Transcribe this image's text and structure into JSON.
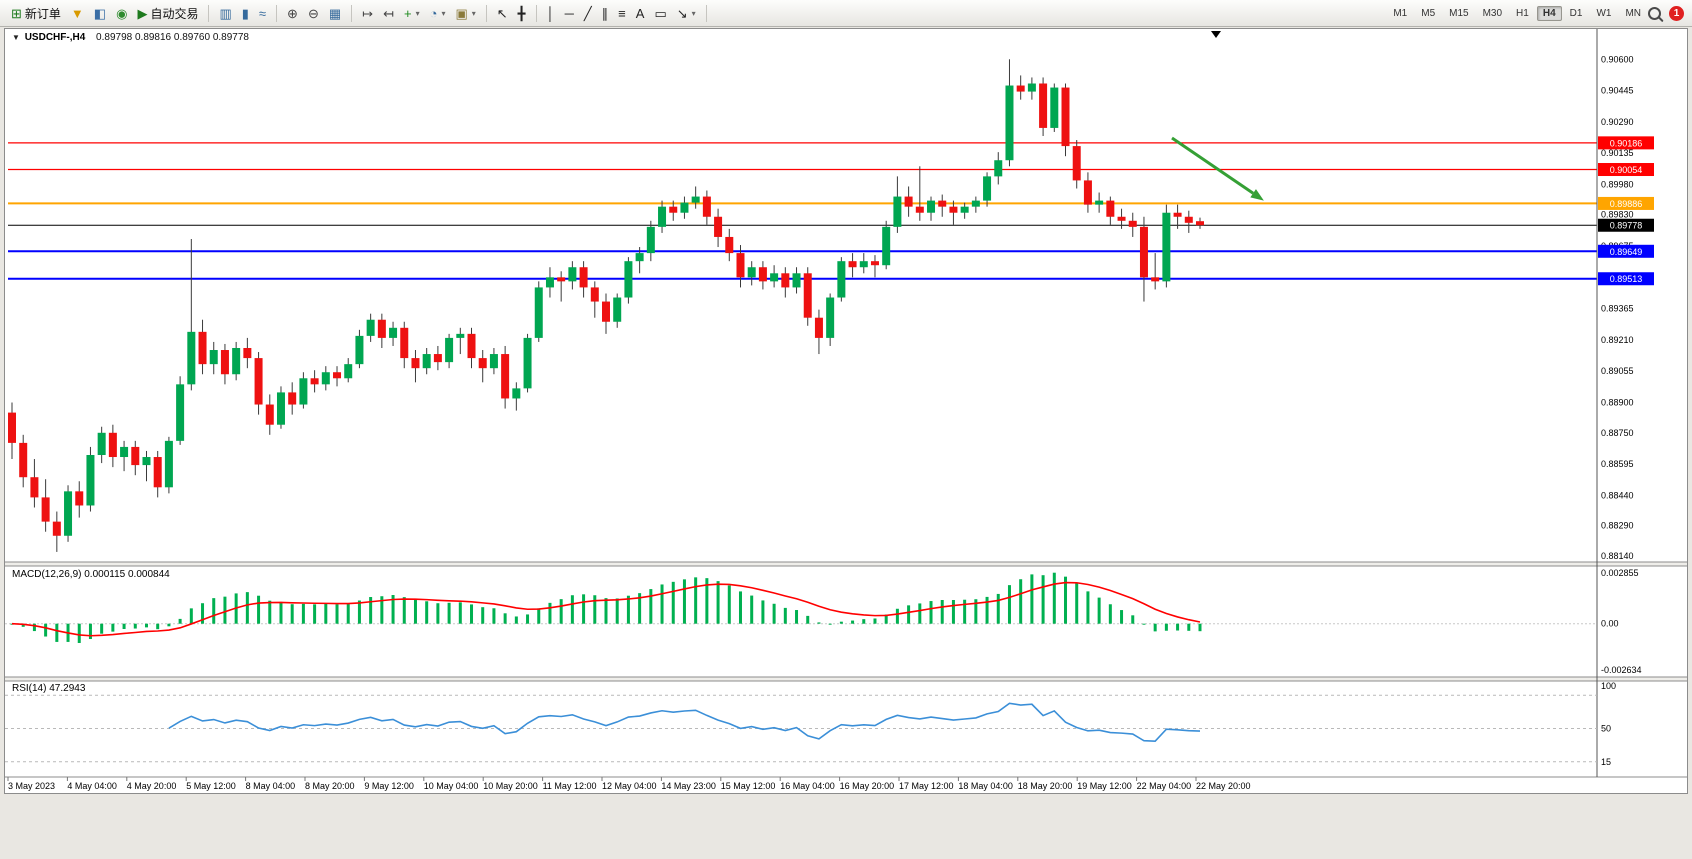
{
  "toolbar": {
    "groups": [
      {
        "items": [
          {
            "name": "new-order-button",
            "label": "新订单",
            "glyph": "⊞",
            "color": "#1d7a1d"
          },
          {
            "name": "market-watch-icon",
            "glyph": "▼",
            "color": "#d89a00"
          },
          {
            "name": "data-window-icon",
            "glyph": "◧",
            "color": "#3a6ea5"
          },
          {
            "name": "navigator-icon",
            "glyph": "◉",
            "color": "#2e8b2e"
          },
          {
            "name": "auto-trading-button",
            "label": "自动交易",
            "glyph": "▶",
            "color": "#1d7a1d"
          }
        ]
      },
      {
        "items": [
          {
            "name": "bar-chart-icon",
            "glyph": "▥",
            "color": "#356a9c"
          },
          {
            "name": "candlestick-chart-icon",
            "glyph": "▮",
            "color": "#356a9c"
          },
          {
            "name": "line-chart-icon",
            "glyph": "≈",
            "color": "#356a9c"
          }
        ]
      },
      {
        "items": [
          {
            "name": "zoom-in-icon",
            "glyph": "⊕",
            "color": "#444"
          },
          {
            "name": "zoom-out-icon",
            "glyph": "⊖",
            "color": "#444"
          },
          {
            "name": "tile-windows-icon",
            "glyph": "▦",
            "color": "#356a9c"
          }
        ]
      },
      {
        "items": [
          {
            "name": "auto-scroll-icon",
            "glyph": "↦",
            "color": "#444"
          },
          {
            "name": "chart-shift-icon",
            "glyph": "↤",
            "color": "#444"
          },
          {
            "name": "indicators-icon",
            "glyph": "+",
            "color": "#1d8a1d",
            "caret": true
          },
          {
            "name": "periods-icon",
            "glyph": "◔",
            "color": "#356a9c",
            "caret": true
          },
          {
            "name": "templates-icon",
            "glyph": "▣",
            "color": "#8a7a3a",
            "caret": true
          }
        ]
      },
      {
        "items": [
          {
            "name": "cursor-icon",
            "glyph": "↖",
            "color": "#222"
          },
          {
            "name": "crosshair-icon",
            "glyph": "╋",
            "color": "#222"
          }
        ]
      },
      {
        "items": [
          {
            "name": "vertical-line-icon",
            "glyph": "│",
            "color": "#222"
          },
          {
            "name": "horizontal-line-icon",
            "glyph": "─",
            "color": "#222"
          },
          {
            "name": "trendline-icon",
            "glyph": "╱",
            "color": "#222"
          },
          {
            "name": "channel-icon",
            "glyph": "∥",
            "color": "#222"
          },
          {
            "name": "fibonacci-icon",
            "glyph": "≡",
            "color": "#222"
          },
          {
            "name": "text-icon",
            "glyph": "A",
            "color": "#222"
          },
          {
            "name": "label-icon",
            "glyph": "▭",
            "color": "#222"
          },
          {
            "name": "arrows-icon",
            "glyph": "↘",
            "color": "#222",
            "caret": true
          }
        ]
      }
    ],
    "timeframes": {
      "items": [
        "M1",
        "M5",
        "M15",
        "M30",
        "H1",
        "H4",
        "D1",
        "W1",
        "MN"
      ],
      "active": "H4"
    },
    "notification_count": "1"
  },
  "chart_header": {
    "collapse_marker": "▼",
    "symbol_period": "USDCHF-,H4",
    "ohlc": "0.89798 0.89816 0.89760 0.89778"
  },
  "price_axis": {
    "ticks": [
      "0.90600",
      "0.90445",
      "0.90290",
      "0.90135",
      "0.89980",
      "0.89830",
      "0.89675",
      "0.89520",
      "0.89365",
      "0.89210",
      "0.89055",
      "0.88900",
      "0.88750",
      "0.88595",
      "0.88440",
      "0.88290",
      "0.88140"
    ]
  },
  "hlines": [
    {
      "price": 0.90186,
      "label": "0.90186",
      "color": "#ff0000",
      "width": 1.2
    },
    {
      "price": 0.90054,
      "label": "0.90054",
      "color": "#ff0000",
      "width": 1.2
    },
    {
      "price": 0.89886,
      "label": "0.89886",
      "color": "#ffa500",
      "width": 2
    },
    {
      "price": 0.89778,
      "label": "0.89778",
      "color": "#000000",
      "width": 1
    },
    {
      "price": 0.89649,
      "label": "0.89649",
      "color": "#0000ff",
      "width": 2
    },
    {
      "price": 0.89513,
      "label": "0.89513",
      "color": "#0000ff",
      "width": 2
    }
  ],
  "arrow": {
    "from": {
      "index": 103.5,
      "price": 0.9021
    },
    "to": {
      "index": 111.7,
      "price": 0.899
    },
    "color": "#35a035"
  },
  "chart_data": {
    "type": "candlestick",
    "symbol": "USDCHF",
    "period": "H4",
    "price_range": [
      0.88115,
      0.90745
    ],
    "bull_color": "#00a651",
    "bear_color": "#ee1111",
    "wick_color": "#3a3a3a",
    "candles": [
      [
        0.8885,
        0.889,
        0.8862,
        0.887
      ],
      [
        0.887,
        0.8874,
        0.8848,
        0.8853
      ],
      [
        0.8853,
        0.8862,
        0.8838,
        0.8843
      ],
      [
        0.8843,
        0.8852,
        0.8826,
        0.8831
      ],
      [
        0.8831,
        0.8836,
        0.8816,
        0.8824
      ],
      [
        0.8824,
        0.8849,
        0.8821,
        0.8846
      ],
      [
        0.8846,
        0.8851,
        0.8833,
        0.8839
      ],
      [
        0.8839,
        0.8868,
        0.8836,
        0.8864
      ],
      [
        0.8864,
        0.8878,
        0.886,
        0.8875
      ],
      [
        0.8875,
        0.8879,
        0.8858,
        0.8863
      ],
      [
        0.8863,
        0.8871,
        0.8856,
        0.8868
      ],
      [
        0.8868,
        0.8871,
        0.8854,
        0.8859
      ],
      [
        0.8859,
        0.8866,
        0.8851,
        0.8863
      ],
      [
        0.8863,
        0.8866,
        0.8843,
        0.8848
      ],
      [
        0.8848,
        0.8873,
        0.8845,
        0.8871
      ],
      [
        0.8871,
        0.8903,
        0.8869,
        0.8899
      ],
      [
        0.8899,
        0.8971,
        0.8896,
        0.8925
      ],
      [
        0.8925,
        0.8931,
        0.8904,
        0.8909
      ],
      [
        0.8909,
        0.892,
        0.8904,
        0.8916
      ],
      [
        0.8916,
        0.8919,
        0.8899,
        0.8904
      ],
      [
        0.8904,
        0.892,
        0.8901,
        0.8917
      ],
      [
        0.8917,
        0.8922,
        0.8907,
        0.8912
      ],
      [
        0.8912,
        0.8915,
        0.8884,
        0.8889
      ],
      [
        0.8889,
        0.8894,
        0.8874,
        0.8879
      ],
      [
        0.8879,
        0.8898,
        0.8877,
        0.8895
      ],
      [
        0.8895,
        0.89,
        0.8884,
        0.8889
      ],
      [
        0.8889,
        0.8905,
        0.8887,
        0.8902
      ],
      [
        0.8902,
        0.8906,
        0.8895,
        0.8899
      ],
      [
        0.8899,
        0.8908,
        0.8896,
        0.8905
      ],
      [
        0.8905,
        0.8908,
        0.8898,
        0.8902
      ],
      [
        0.8902,
        0.8912,
        0.89,
        0.8909
      ],
      [
        0.8909,
        0.8926,
        0.8907,
        0.8923
      ],
      [
        0.8923,
        0.8934,
        0.892,
        0.8931
      ],
      [
        0.8931,
        0.8934,
        0.8917,
        0.8922
      ],
      [
        0.8922,
        0.893,
        0.8918,
        0.8927
      ],
      [
        0.8927,
        0.893,
        0.8907,
        0.8912
      ],
      [
        0.8912,
        0.8916,
        0.89,
        0.8907
      ],
      [
        0.8907,
        0.8917,
        0.8904,
        0.8914
      ],
      [
        0.8914,
        0.8918,
        0.8906,
        0.891
      ],
      [
        0.891,
        0.8924,
        0.8907,
        0.8922
      ],
      [
        0.8922,
        0.8927,
        0.8914,
        0.8924
      ],
      [
        0.8924,
        0.8927,
        0.8907,
        0.8912
      ],
      [
        0.8912,
        0.8916,
        0.89,
        0.8907
      ],
      [
        0.8907,
        0.8917,
        0.8904,
        0.8914
      ],
      [
        0.8914,
        0.8918,
        0.8887,
        0.8892
      ],
      [
        0.8892,
        0.89,
        0.8886,
        0.8897
      ],
      [
        0.8897,
        0.8924,
        0.8895,
        0.8922
      ],
      [
        0.8922,
        0.895,
        0.892,
        0.8947
      ],
      [
        0.8947,
        0.8957,
        0.8942,
        0.8952
      ],
      [
        0.8952,
        0.8955,
        0.894,
        0.895
      ],
      [
        0.895,
        0.896,
        0.8946,
        0.8957
      ],
      [
        0.8957,
        0.896,
        0.8942,
        0.8947
      ],
      [
        0.8947,
        0.895,
        0.8932,
        0.894
      ],
      [
        0.894,
        0.8944,
        0.8924,
        0.893
      ],
      [
        0.893,
        0.8944,
        0.8927,
        0.8942
      ],
      [
        0.8942,
        0.8962,
        0.8939,
        0.896
      ],
      [
        0.896,
        0.8967,
        0.8954,
        0.8964
      ],
      [
        0.8964,
        0.898,
        0.896,
        0.8977
      ],
      [
        0.8977,
        0.899,
        0.8974,
        0.8987
      ],
      [
        0.8987,
        0.899,
        0.898,
        0.8984
      ],
      [
        0.8984,
        0.8992,
        0.8981,
        0.8989
      ],
      [
        0.8989,
        0.8997,
        0.8986,
        0.8992
      ],
      [
        0.8992,
        0.8995,
        0.8978,
        0.8982
      ],
      [
        0.8982,
        0.8986,
        0.8967,
        0.8972
      ],
      [
        0.8972,
        0.8976,
        0.896,
        0.8964
      ],
      [
        0.8964,
        0.8968,
        0.8947,
        0.8952
      ],
      [
        0.8952,
        0.896,
        0.8948,
        0.8957
      ],
      [
        0.8957,
        0.896,
        0.8946,
        0.895
      ],
      [
        0.895,
        0.8958,
        0.8947,
        0.8954
      ],
      [
        0.8954,
        0.8957,
        0.8942,
        0.8947
      ],
      [
        0.8947,
        0.8957,
        0.8944,
        0.8954
      ],
      [
        0.8954,
        0.8957,
        0.8928,
        0.8932
      ],
      [
        0.8932,
        0.8936,
        0.8914,
        0.8922
      ],
      [
        0.8922,
        0.8944,
        0.8918,
        0.8942
      ],
      [
        0.8942,
        0.8962,
        0.894,
        0.896
      ],
      [
        0.896,
        0.8964,
        0.8952,
        0.8957
      ],
      [
        0.8957,
        0.8964,
        0.8954,
        0.896
      ],
      [
        0.896,
        0.8963,
        0.8952,
        0.8958
      ],
      [
        0.8958,
        0.898,
        0.8956,
        0.8977
      ],
      [
        0.8977,
        0.9002,
        0.8974,
        0.8992
      ],
      [
        0.8992,
        0.8997,
        0.8982,
        0.8987
      ],
      [
        0.8987,
        0.9007,
        0.898,
        0.8984
      ],
      [
        0.8984,
        0.8992,
        0.898,
        0.899
      ],
      [
        0.899,
        0.8993,
        0.8982,
        0.8987
      ],
      [
        0.8987,
        0.899,
        0.8978,
        0.8984
      ],
      [
        0.8984,
        0.8989,
        0.8981,
        0.8987
      ],
      [
        0.8987,
        0.8992,
        0.8984,
        0.899
      ],
      [
        0.899,
        0.9004,
        0.8987,
        0.9002
      ],
      [
        0.9002,
        0.9014,
        0.8998,
        0.901
      ],
      [
        0.901,
        0.906,
        0.9007,
        0.9047
      ],
      [
        0.9047,
        0.9052,
        0.904,
        0.9044
      ],
      [
        0.9044,
        0.9051,
        0.904,
        0.9048
      ],
      [
        0.9048,
        0.9051,
        0.9022,
        0.9026
      ],
      [
        0.9026,
        0.9048,
        0.9024,
        0.9046
      ],
      [
        0.9046,
        0.9048,
        0.9012,
        0.9017
      ],
      [
        0.9017,
        0.902,
        0.8996,
        0.9
      ],
      [
        0.9,
        0.9004,
        0.8984,
        0.8988
      ],
      [
        0.8988,
        0.8994,
        0.8984,
        0.899
      ],
      [
        0.899,
        0.8992,
        0.8978,
        0.8982
      ],
      [
        0.8982,
        0.8986,
        0.8976,
        0.898
      ],
      [
        0.898,
        0.8984,
        0.8972,
        0.8977
      ],
      [
        0.8977,
        0.8982,
        0.894,
        0.8952
      ],
      [
        0.8952,
        0.8964,
        0.8946,
        0.895
      ],
      [
        0.895,
        0.8988,
        0.8947,
        0.8984
      ],
      [
        0.8984,
        0.8988,
        0.8976,
        0.8982
      ],
      [
        0.8982,
        0.8985,
        0.8974,
        0.8979
      ],
      [
        0.89798,
        0.89816,
        0.8976,
        0.89778
      ]
    ],
    "time_labels": [
      "3 May 2023",
      "4 May 04:00",
      "4 May 20:00",
      "5 May 12:00",
      "8 May 04:00",
      "8 May 20:00",
      "9 May 12:00",
      "10 May 04:00",
      "10 May 20:00",
      "11 May 12:00",
      "12 May 04:00",
      "14 May 23:00",
      "15 May 12:00",
      "16 May 04:00",
      "16 May 20:00",
      "17 May 12:00",
      "18 May 04:00",
      "18 May 20:00",
      "19 May 12:00",
      "22 May 04:00",
      "22 May 20:00"
    ],
    "indicators": {
      "macd": {
        "label": "MACD(12,26,9) 0.000115 0.000844",
        "params": [
          12,
          26,
          9
        ],
        "values": [
          "0.000115",
          "0.000844"
        ],
        "axis_labels": [
          "0.002855",
          "0.00",
          "-0.002634"
        ],
        "histogram_color": "#00b050",
        "signal_color": "#ff0000"
      },
      "rsi": {
        "label": "RSI(14) 47.2943",
        "period": 14,
        "value": "47.2943",
        "axis_labels": [
          "100",
          "50",
          "15"
        ],
        "levels": [
          85,
          50,
          15
        ],
        "range": [
          0,
          100
        ],
        "line_color": "#3b8fd8"
      }
    }
  }
}
